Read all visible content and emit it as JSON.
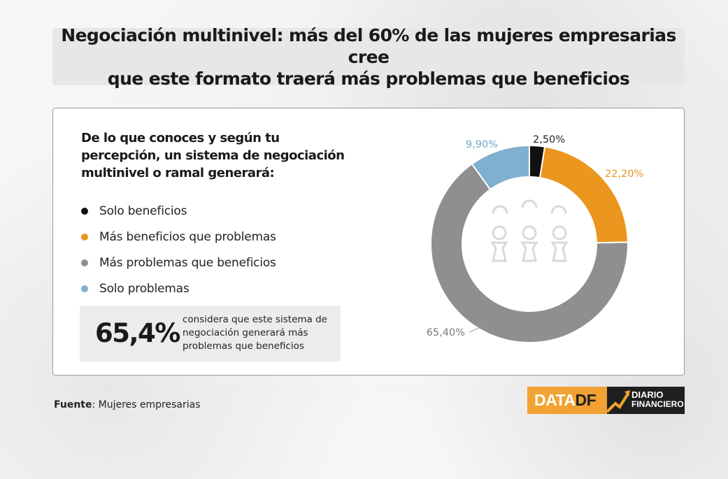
{
  "title": "Negociación multinivel: más del 60% de las mujeres empresarias cree\nque este formato traerá más problemas que beneficios",
  "question": "De lo que conoces y según tu percepción, un sistema de negociación multinivel o ramal generará:",
  "highlight": {
    "value": "65,4%",
    "description": "considera que este sistema de negociación generará más problemas que beneficios"
  },
  "source": {
    "label": "Fuente",
    "text": ": Mujeres empresarias"
  },
  "logo": {
    "data": "DATA",
    "df": "DF",
    "line1": "DIARIO",
    "line2": "FINANCIERO"
  },
  "icon": "people-group-icon",
  "chart_data": {
    "type": "pie",
    "donut": true,
    "title": "",
    "slices": [
      {
        "label": "Solo beneficios",
        "value": 2.5,
        "display": "2,50%",
        "color": "#111111",
        "label_color": "#222222"
      },
      {
        "label": "Más beneficios que problemas",
        "value": 22.2,
        "display": "22,20%",
        "color": "#ea961f",
        "label_color": "#ea961f"
      },
      {
        "label": "Más problemas que beneficios",
        "value": 65.4,
        "display": "65,40%",
        "color": "#8f8f8f",
        "label_color": "#7a7a7a"
      },
      {
        "label": "Solo problemas",
        "value": 9.9,
        "display": "9,90%",
        "color": "#7fb0d0",
        "label_color": "#6fa6cc"
      }
    ]
  }
}
